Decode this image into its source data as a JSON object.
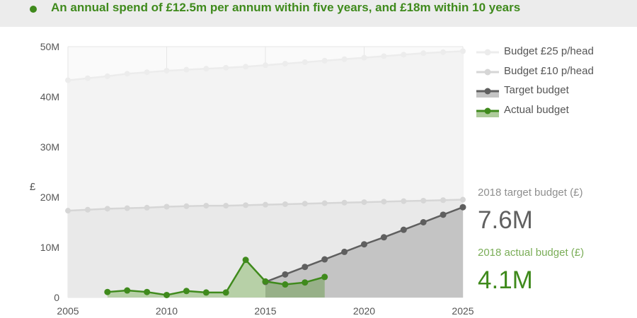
{
  "header": {
    "title": "An annual spend of £12.5m per annum within five years, and £18m within 10 years"
  },
  "stats": {
    "target_label": "2018 target budget (£)",
    "target_value": "7.6M",
    "actual_label": "2018 actual budget (£)",
    "actual_value": "4.1M"
  },
  "colors": {
    "accent_green": "#3f8a1c",
    "target_grey": "#5f5f5f",
    "budget25": "#ececec",
    "budget10": "#d6d6d6"
  },
  "chart_data": {
    "type": "area",
    "ylabel": "£",
    "xlim": [
      2005,
      2025
    ],
    "ylim": [
      0,
      50
    ],
    "y_unit": "M",
    "x_ticks": [
      "2005",
      "2010",
      "2015",
      "2020",
      "2025"
    ],
    "y_ticks": [
      "0",
      "10M",
      "20M",
      "30M",
      "40M",
      "50M"
    ],
    "grid": true,
    "legend_position": "top-right",
    "series": [
      {
        "name": "Budget £25 p/head",
        "color": "#ececec",
        "x": [
          2005,
          2006,
          2007,
          2008,
          2009,
          2010,
          2011,
          2012,
          2013,
          2014,
          2015,
          2016,
          2017,
          2018,
          2019,
          2020,
          2021,
          2022,
          2023,
          2024,
          2025
        ],
        "y": [
          43.3,
          43.7,
          44.1,
          44.6,
          44.9,
          45.2,
          45.4,
          45.6,
          45.8,
          46.0,
          46.3,
          46.6,
          46.9,
          47.2,
          47.5,
          47.8,
          48.1,
          48.4,
          48.7,
          48.9,
          49.1
        ]
      },
      {
        "name": "Budget £10 p/head",
        "color": "#d6d6d6",
        "x": [
          2005,
          2006,
          2007,
          2008,
          2009,
          2010,
          2011,
          2012,
          2013,
          2014,
          2015,
          2016,
          2017,
          2018,
          2019,
          2020,
          2021,
          2022,
          2023,
          2024,
          2025
        ],
        "y": [
          17.3,
          17.5,
          17.7,
          17.8,
          17.9,
          18.1,
          18.2,
          18.3,
          18.3,
          18.4,
          18.5,
          18.6,
          18.7,
          18.8,
          18.9,
          19.0,
          19.1,
          19.2,
          19.3,
          19.4,
          19.5
        ]
      },
      {
        "name": "Target budget",
        "color": "#5f5f5f",
        "x": [
          2015,
          2016,
          2017,
          2018,
          2019,
          2020,
          2021,
          2022,
          2023,
          2024,
          2025
        ],
        "y": [
          3.1,
          4.6,
          6.1,
          7.6,
          9.1,
          10.6,
          12.0,
          13.5,
          15.0,
          16.5,
          18.0
        ]
      },
      {
        "name": "Actual budget",
        "color": "#3f8a1c",
        "x": [
          2007,
          2008,
          2009,
          2010,
          2011,
          2012,
          2013,
          2014,
          2015,
          2016,
          2017,
          2018
        ],
        "y": [
          1.1,
          1.4,
          1.1,
          0.5,
          1.3,
          1.0,
          1.0,
          7.5,
          3.2,
          2.6,
          3.0,
          4.1
        ]
      }
    ]
  }
}
